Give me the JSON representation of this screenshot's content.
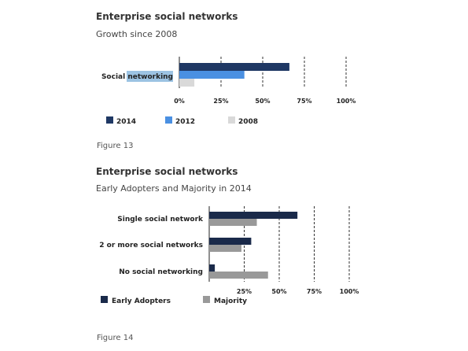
{
  "chart_data": [
    {
      "type": "bar",
      "orientation": "horizontal",
      "title": "Enterprise social networks",
      "subtitle": "Growth since 2008",
      "categories": [
        "Social networking"
      ],
      "highlighted_category": "networking",
      "series": [
        {
          "name": "2014",
          "color": "#1f3864",
          "values": [
            66
          ]
        },
        {
          "name": "2012",
          "color": "#4a90e2",
          "values": [
            39
          ]
        },
        {
          "name": "2008",
          "color": "#d9d9d9",
          "values": [
            9
          ]
        }
      ],
      "xlim": [
        0,
        100
      ],
      "xticks": [
        "0%",
        "25%",
        "50%",
        "75%",
        "100%"
      ],
      "grid": true,
      "legend_position": "bottom",
      "figure_label": "Figure 13"
    },
    {
      "type": "bar",
      "orientation": "horizontal",
      "title": "Enterprise social networks",
      "subtitle": "Early Adopters and Majority in 2014",
      "categories": [
        "Single social network",
        "2 or more social networks",
        "No social networking"
      ],
      "series": [
        {
          "name": "Early Adopters",
          "color": "#1a2a4a",
          "values": [
            63,
            30,
            4
          ]
        },
        {
          "name": "Majority",
          "color": "#999999",
          "values": [
            34,
            23,
            42
          ]
        }
      ],
      "xlim": [
        0,
        100
      ],
      "xticks": [
        "25%",
        "50%",
        "75%",
        "100%"
      ],
      "grid": true,
      "legend_position": "bottom",
      "figure_label": "Figure 14"
    }
  ]
}
